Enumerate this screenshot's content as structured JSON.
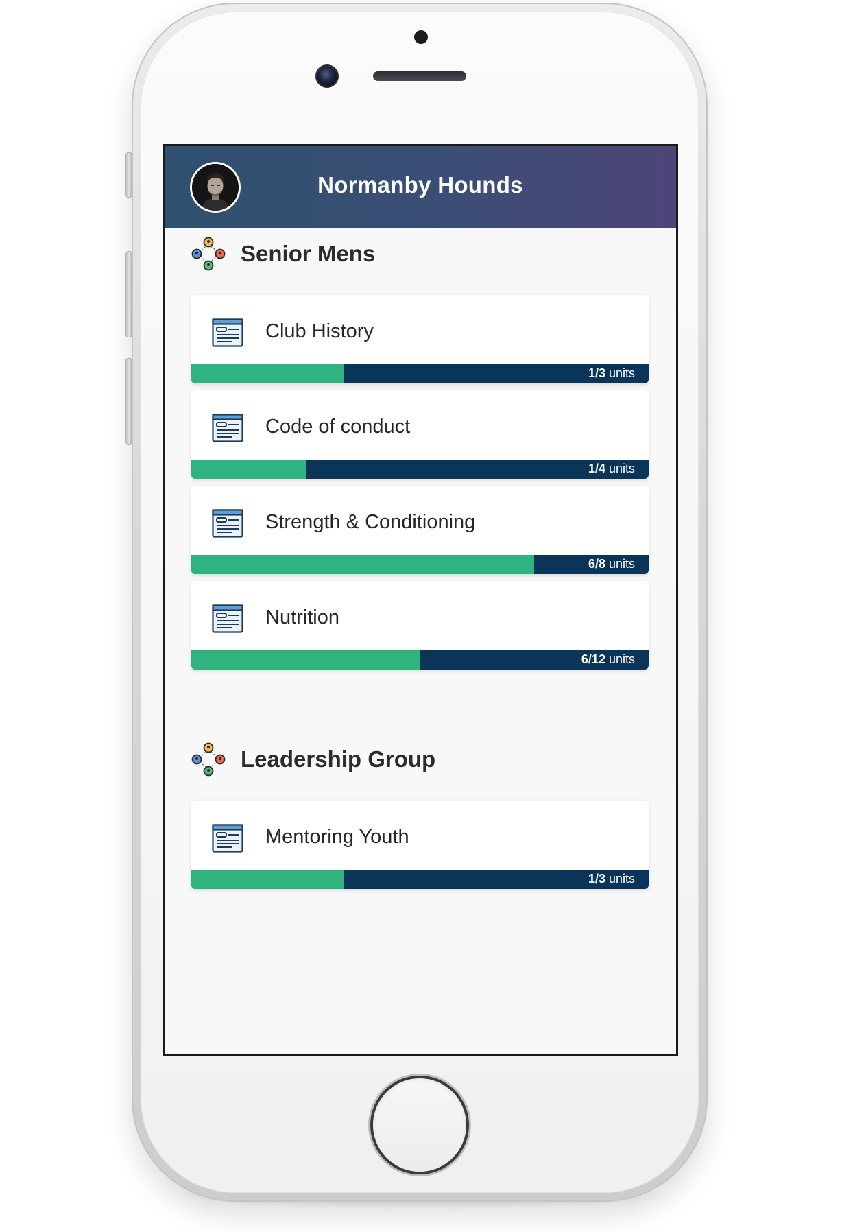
{
  "app": {
    "header_title": "Normanby Hounds",
    "avatar_icon": "user-avatar",
    "colors": {
      "header_start": "#2f506f",
      "header_end": "#4d4579",
      "progress_fill": "#2fb480",
      "progress_track": "#0a3558"
    }
  },
  "groups": [
    {
      "title": "Senior Mens",
      "icon": "team-icon",
      "courses": [
        {
          "title": "Club History",
          "icon": "document-icon",
          "completed": 1,
          "total": 3,
          "progress_label": "1/3",
          "units_label": " units"
        },
        {
          "title": "Code of conduct",
          "icon": "document-icon",
          "completed": 1,
          "total": 4,
          "progress_label": "1/4",
          "units_label": " units"
        },
        {
          "title": "Strength & Conditioning",
          "icon": "document-icon",
          "completed": 6,
          "total": 8,
          "progress_label": "6/8",
          "units_label": " units"
        },
        {
          "title": "Nutrition",
          "icon": "document-icon",
          "completed": 6,
          "total": 12,
          "progress_label": "6/12",
          "units_label": " units"
        }
      ]
    },
    {
      "title": "Leadership Group",
      "icon": "team-icon",
      "courses": [
        {
          "title": "Mentoring Youth",
          "icon": "document-icon",
          "completed": 1,
          "total": 3,
          "progress_label": "1/3",
          "units_label": " units"
        }
      ]
    }
  ]
}
